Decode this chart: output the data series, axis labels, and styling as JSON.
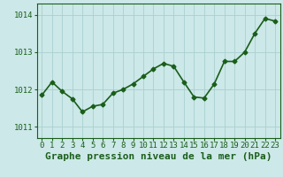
{
  "x": [
    0,
    1,
    2,
    3,
    4,
    5,
    6,
    7,
    8,
    9,
    10,
    11,
    12,
    13,
    14,
    15,
    16,
    17,
    18,
    19,
    20,
    21,
    22,
    23
  ],
  "y": [
    1011.85,
    1012.2,
    1011.95,
    1011.75,
    1011.4,
    1011.55,
    1011.6,
    1011.9,
    1012.0,
    1012.15,
    1012.35,
    1012.55,
    1012.7,
    1012.62,
    1012.2,
    1011.8,
    1011.77,
    1012.15,
    1012.75,
    1012.75,
    1013.0,
    1013.5,
    1013.9,
    1013.83
  ],
  "line_color": "#1a5e1a",
  "marker": "D",
  "marker_size": 2.5,
  "bg_color": "#cce8e8",
  "grid_color": "#aacfcf",
  "xlabel": "Graphe pression niveau de la mer (hPa)",
  "xlabel_color": "#1a5e1a",
  "tick_color": "#1a5e1a",
  "ylim": [
    1010.7,
    1014.3
  ],
  "yticks": [
    1011,
    1012,
    1013,
    1014
  ],
  "xticks": [
    0,
    1,
    2,
    3,
    4,
    5,
    6,
    7,
    8,
    9,
    10,
    11,
    12,
    13,
    14,
    15,
    16,
    17,
    18,
    19,
    20,
    21,
    22,
    23
  ],
  "tick_label_fontsize": 6.5,
  "xlabel_fontsize": 8,
  "linewidth": 1.2
}
